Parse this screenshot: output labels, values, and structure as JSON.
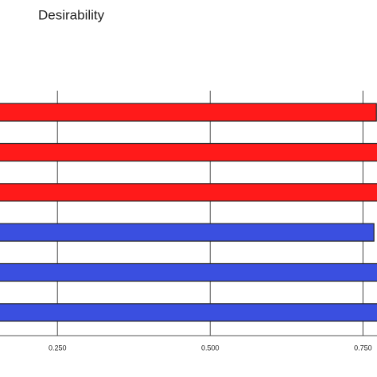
{
  "chart_data": {
    "type": "bar",
    "orientation": "horizontal",
    "title": "Desirability",
    "categories": [
      null,
      null,
      null,
      null,
      null,
      null
    ],
    "values": [
      0.772,
      0.775,
      0.775,
      0.768,
      0.775,
      0.775
    ],
    "colors": [
      "#ff1a1a",
      "#ff1a1a",
      "#ff1a1a",
      "#3a4fe0",
      "#3a4fe0",
      "#3a4fe0"
    ],
    "xlim": [
      0.156,
      0.773
    ],
    "xticks": [
      {
        "value": 0.25,
        "label": "0.250"
      },
      {
        "value": 0.5,
        "label": "0.500"
      },
      {
        "value": 0.75,
        "label": "0.750"
      }
    ],
    "grid": true
  }
}
